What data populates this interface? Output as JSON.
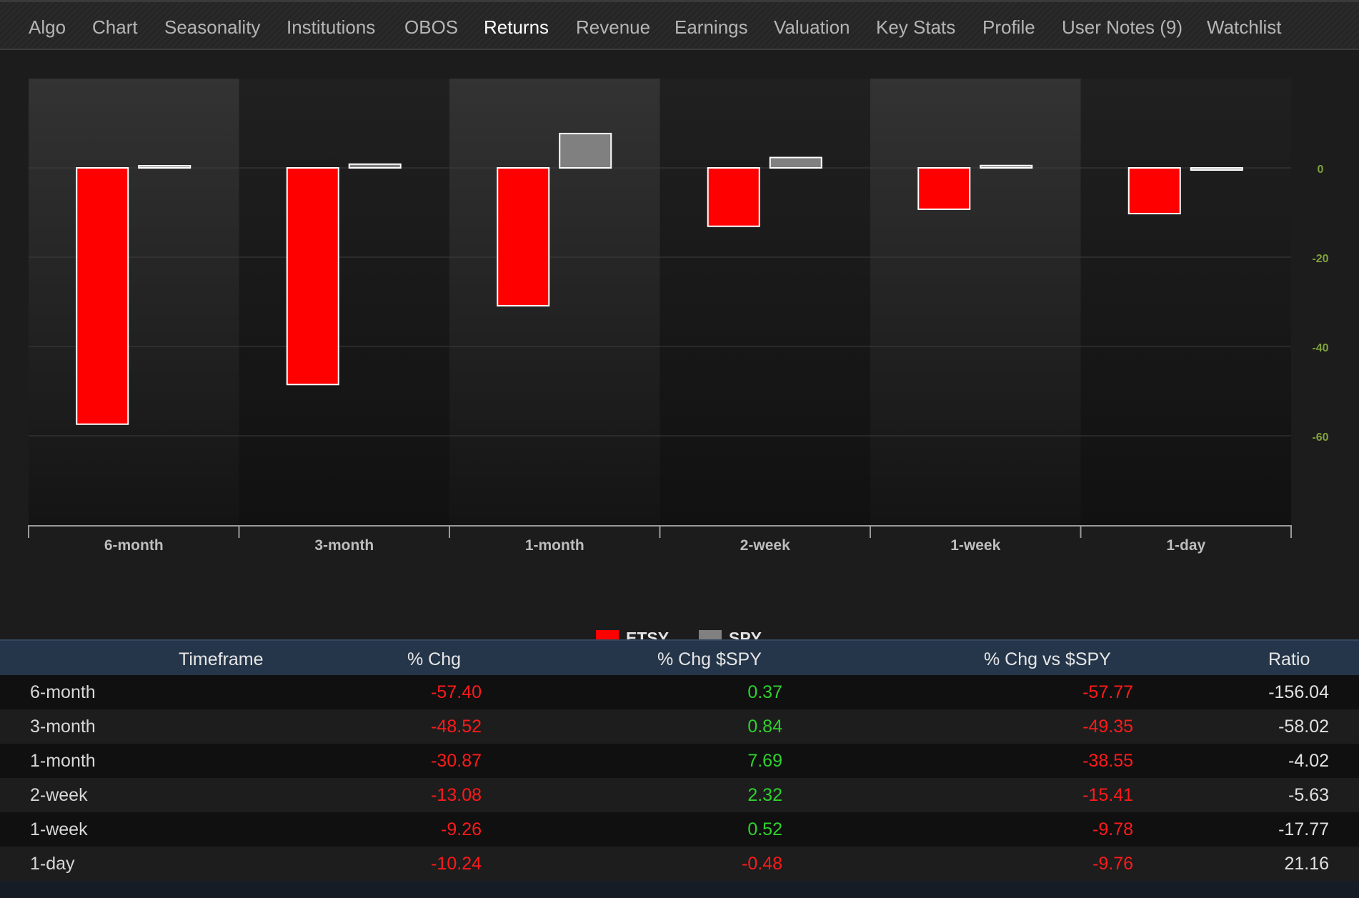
{
  "nav": {
    "items": [
      {
        "label": "Algo",
        "active": false
      },
      {
        "label": "Chart",
        "active": false
      },
      {
        "label": "Seasonality",
        "active": false
      },
      {
        "label": "Institutions",
        "active": false
      },
      {
        "label": "OBOS",
        "active": false
      },
      {
        "label": "Returns",
        "active": true
      },
      {
        "label": "Revenue",
        "active": false
      },
      {
        "label": "Earnings",
        "active": false
      },
      {
        "label": "Valuation",
        "active": false
      },
      {
        "label": "Key Stats",
        "active": false
      },
      {
        "label": "Profile",
        "active": false
      },
      {
        "label": "User Notes (9)",
        "active": false
      },
      {
        "label": "Watchlist",
        "active": false
      }
    ]
  },
  "chart_data": {
    "type": "bar",
    "categories": [
      "6-month",
      "3-month",
      "1-month",
      "2-week",
      "1-week",
      "1-day"
    ],
    "series": [
      {
        "name": "ETSY",
        "color": "#ff0000",
        "values": [
          -57.4,
          -48.52,
          -30.87,
          -13.08,
          -9.26,
          -10.24
        ]
      },
      {
        "name": "SPY",
        "color": "#808080",
        "values": [
          0.37,
          0.84,
          7.69,
          2.32,
          0.52,
          -0.48
        ]
      }
    ],
    "yticks": [
      0,
      -20,
      -40,
      -60
    ],
    "ylim": [
      -80,
      20
    ],
    "legend_position": "bottom-center",
    "grid": true
  },
  "legend": {
    "etsy_label": "ETSY",
    "spy_label": "SPY",
    "etsy_color": "#ff0000",
    "spy_color": "#808080"
  },
  "table": {
    "headers": {
      "timeframe": "Timeframe",
      "chg": "% Chg",
      "chg_spy": "% Chg $SPY",
      "chg_vs_spy": "% Chg vs $SPY",
      "ratio": "Ratio"
    },
    "rows": [
      {
        "timeframe": "6-month",
        "chg": "-57.40",
        "chg_spy": "0.37",
        "chg_vs_spy": "-57.77",
        "ratio": "-156.04"
      },
      {
        "timeframe": "3-month",
        "chg": "-48.52",
        "chg_spy": "0.84",
        "chg_vs_spy": "-49.35",
        "ratio": "-58.02"
      },
      {
        "timeframe": "1-month",
        "chg": "-30.87",
        "chg_spy": "7.69",
        "chg_vs_spy": "-38.55",
        "ratio": "-4.02"
      },
      {
        "timeframe": "2-week",
        "chg": "-13.08",
        "chg_spy": "2.32",
        "chg_vs_spy": "-15.41",
        "ratio": "-5.63"
      },
      {
        "timeframe": "1-week",
        "chg": "-9.26",
        "chg_spy": "0.52",
        "chg_vs_spy": "-9.78",
        "ratio": "-17.77"
      },
      {
        "timeframe": "1-day",
        "chg": "-10.24",
        "chg_spy": "-0.48",
        "chg_vs_spy": "-9.76",
        "ratio": "21.16"
      }
    ]
  }
}
